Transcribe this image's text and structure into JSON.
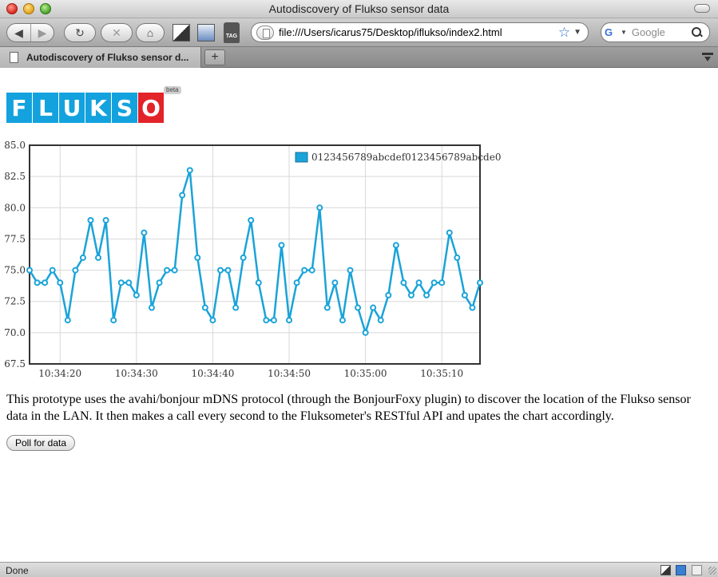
{
  "window": {
    "title": "Autodiscovery of Flukso sensor data"
  },
  "toolbar": {
    "url": "file:///Users/icarus75/Desktop/iflukso/index2.html",
    "search_placeholder": "Google",
    "tag_label": "TAG",
    "icons": [
      "back-icon",
      "forward-icon",
      "reload-icon",
      "stop-icon",
      "home-icon",
      "bookmark-icon",
      "tag-icon",
      "star-icon",
      "search-icon"
    ]
  },
  "tabs": [
    {
      "label": "Autodiscovery of Flukso sensor d..."
    }
  ],
  "page": {
    "logo_letters": [
      "F",
      "L",
      "U",
      "K",
      "S",
      "O"
    ],
    "logo_colors": {
      "primary": "#13a2de",
      "accent": "#e3232a"
    },
    "beta_label": "beta",
    "description": "This prototype uses the avahi/bonjour mDNS protocol (through the BonjourFoxy plugin) to discover the location of the Flukso sensor data in the LAN. It then makes a call every second to the Fluksometer's RESTful API and upates the chart accordingly.",
    "poll_button": "Poll for data"
  },
  "chart_data": {
    "type": "line",
    "title": "",
    "xlabel": "",
    "ylabel": "",
    "x_start": "10:34:16",
    "x_step_seconds": 1,
    "x_ticks": [
      "10:34:20",
      "10:34:30",
      "10:34:40",
      "10:34:50",
      "10:35:00",
      "10:35:10"
    ],
    "y_ticks": [
      "85.0",
      "82.5",
      "80.0",
      "77.5",
      "75.0",
      "72.5",
      "70.0",
      "67.5"
    ],
    "ylim": [
      67.5,
      85.0
    ],
    "grid": true,
    "legend_position": "top-right",
    "series": [
      {
        "name": "0123456789abcdef0123456789abcde0",
        "color": "#1aa3d9",
        "values": [
          75,
          74,
          74,
          75,
          74,
          71,
          75,
          76,
          79,
          76,
          79,
          71,
          74,
          74,
          73,
          78,
          72,
          74,
          75,
          75,
          81,
          83,
          76,
          72,
          71,
          75,
          75,
          72,
          76,
          79,
          74,
          71,
          71,
          77,
          71,
          74,
          75,
          75,
          80,
          72,
          74,
          71,
          75,
          72,
          70,
          72,
          71,
          73,
          77,
          74,
          73,
          74,
          73,
          74,
          74,
          78,
          76,
          73,
          72,
          74
        ]
      }
    ]
  },
  "status": {
    "text": "Done"
  }
}
